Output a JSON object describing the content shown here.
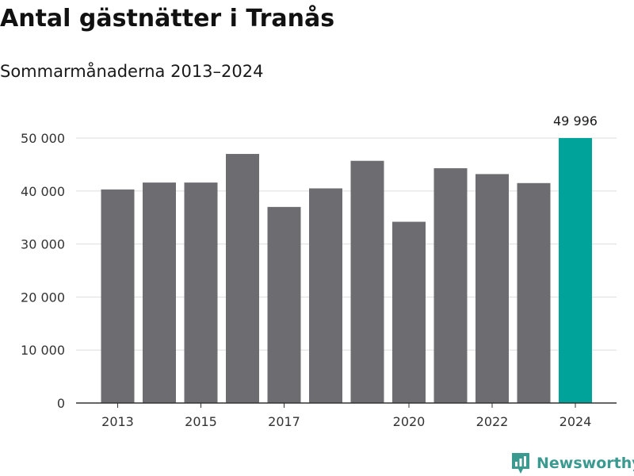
{
  "chart_data": {
    "type": "bar",
    "title": "Antal gästnätter i Tranås",
    "subtitle": "Sommarmånaderna 2013–2024",
    "categories": [
      2013,
      2014,
      2015,
      2016,
      2017,
      2018,
      2019,
      2020,
      2021,
      2022,
      2023,
      2024
    ],
    "values": [
      40300,
      41600,
      41600,
      47000,
      37000,
      40500,
      45700,
      34200,
      44300,
      43200,
      41500,
      49996
    ],
    "x_tick_labels": [
      "2013",
      "2015",
      "2017",
      "2020",
      "2022",
      "2024"
    ],
    "y_tick_labels": [
      "0",
      "10 000",
      "20 000",
      "30 000",
      "40 000",
      "50 000"
    ],
    "y_ticks": [
      0,
      10000,
      20000,
      30000,
      40000,
      50000
    ],
    "ylim": [
      0,
      50000
    ],
    "xlabel": "",
    "ylabel": "",
    "grid": true,
    "highlight_index": 11,
    "highlight_label": "49 996",
    "colors": {
      "bar": "#6d6c70",
      "highlight": "#00a39a",
      "grid": "#dddddd",
      "axis": "#333333"
    }
  },
  "brand": {
    "name": "Newsworthy",
    "icon": "newsworthy-logo-icon",
    "color": "#3a9a90"
  }
}
